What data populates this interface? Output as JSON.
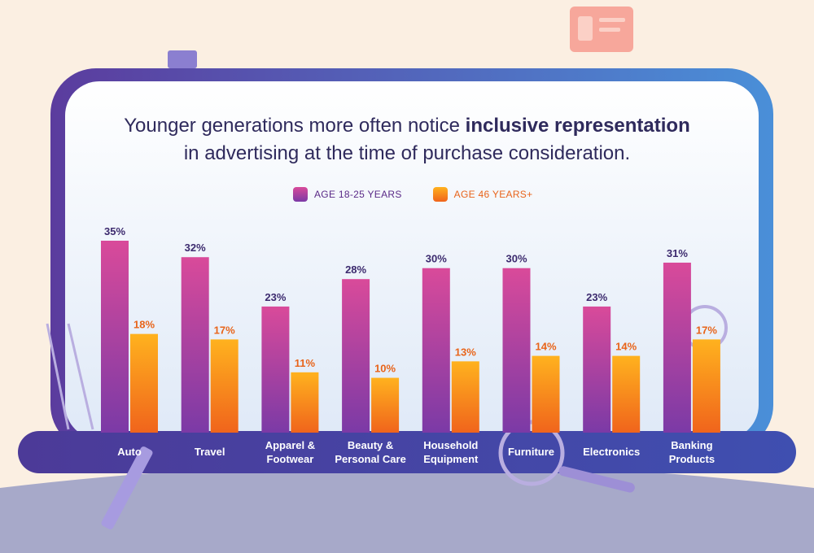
{
  "title": {
    "part1": "Younger generations more often notice ",
    "bold": "inclusive representation",
    "line2": "in advertising at the time of purchase consideration."
  },
  "colors": {
    "young_top": "#d94a9a",
    "young_bottom": "#7b3aa6",
    "old_top": "#ffb21e",
    "old_bottom": "#f0641c",
    "young_label": "#3c2a6e",
    "old_label": "#e8641a"
  },
  "chart_data": {
    "type": "bar",
    "categories": [
      "Auto",
      "Travel",
      "Apparel & Footwear",
      "Beauty & Personal Care",
      "Household Equipment",
      "Furniture",
      "Electronics",
      "Banking Products"
    ],
    "category_lines": [
      [
        "Auto"
      ],
      [
        "Travel"
      ],
      [
        "Apparel &",
        "Footwear"
      ],
      [
        "Beauty &",
        "Personal Care"
      ],
      [
        "Household",
        "Equipment"
      ],
      [
        "Furniture"
      ],
      [
        "Electronics"
      ],
      [
        "Banking",
        "Products"
      ]
    ],
    "series": [
      {
        "name": "AGE 18-25 YEARS",
        "values": [
          35,
          32,
          23,
          28,
          30,
          30,
          23,
          31
        ],
        "labels": [
          "35%",
          "32%",
          "23%",
          "28%",
          "30%",
          "30%",
          "23%",
          "31%"
        ]
      },
      {
        "name": "AGE 46 YEARS+",
        "values": [
          18,
          17,
          11,
          10,
          13,
          14,
          14,
          17
        ],
        "labels": [
          "18%",
          "17%",
          "11%",
          "10%",
          "13%",
          "14%",
          "14%",
          "17%"
        ]
      }
    ],
    "ylim": [
      0,
      35
    ],
    "legend": "top",
    "grid": false
  }
}
